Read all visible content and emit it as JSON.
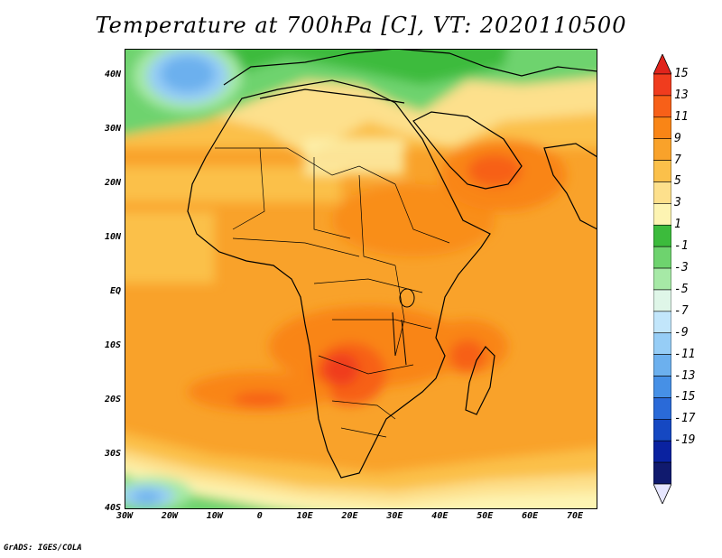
{
  "title": "Temperature at 700hPa [C], VT: 2020110500",
  "footer": "GrADS: IGES/COLA",
  "lat_ticks": [
    "40N",
    "30N",
    "20N",
    "10N",
    "EQ",
    "10S",
    "20S",
    "30S",
    "40S"
  ],
  "lat_values": [
    40,
    30,
    20,
    10,
    0,
    -10,
    -20,
    -30,
    -40
  ],
  "lon_ticks": [
    "30W",
    "20W",
    "10W",
    "0",
    "10E",
    "20E",
    "30E",
    "40E",
    "50E",
    "60E",
    "70E"
  ],
  "lon_values": [
    -30,
    -20,
    -10,
    0,
    10,
    20,
    30,
    40,
    50,
    60,
    70
  ],
  "extent": {
    "lon_min": -30,
    "lon_max": 75,
    "lat_min": -40,
    "lat_max": 45
  },
  "colorbar": {
    "labels": [
      "15",
      "13",
      "11",
      "9",
      "7",
      "5",
      "3",
      "1",
      "-1",
      "-3",
      "-5",
      "-7",
      "-9",
      "-11",
      "-13",
      "-15",
      "-17",
      "-19"
    ],
    "colors": [
      "#f03c1e",
      "#f76018",
      "#f98516",
      "#f9a22a",
      "#fbc04a",
      "#fde08c",
      "#fdf4b2",
      "#3cbb3c",
      "#6ed36e",
      "#a6e9a6",
      "#dff6e8",
      "#c2e6fb",
      "#96cdf6",
      "#6cb0ee",
      "#4690e6",
      "#2a6ad8",
      "#1548c2",
      "#0a22a0",
      "#101a6e"
    ],
    "top_triangle_color": "#e0241c",
    "bottom_triangle_color": "#e6e6ff"
  }
}
